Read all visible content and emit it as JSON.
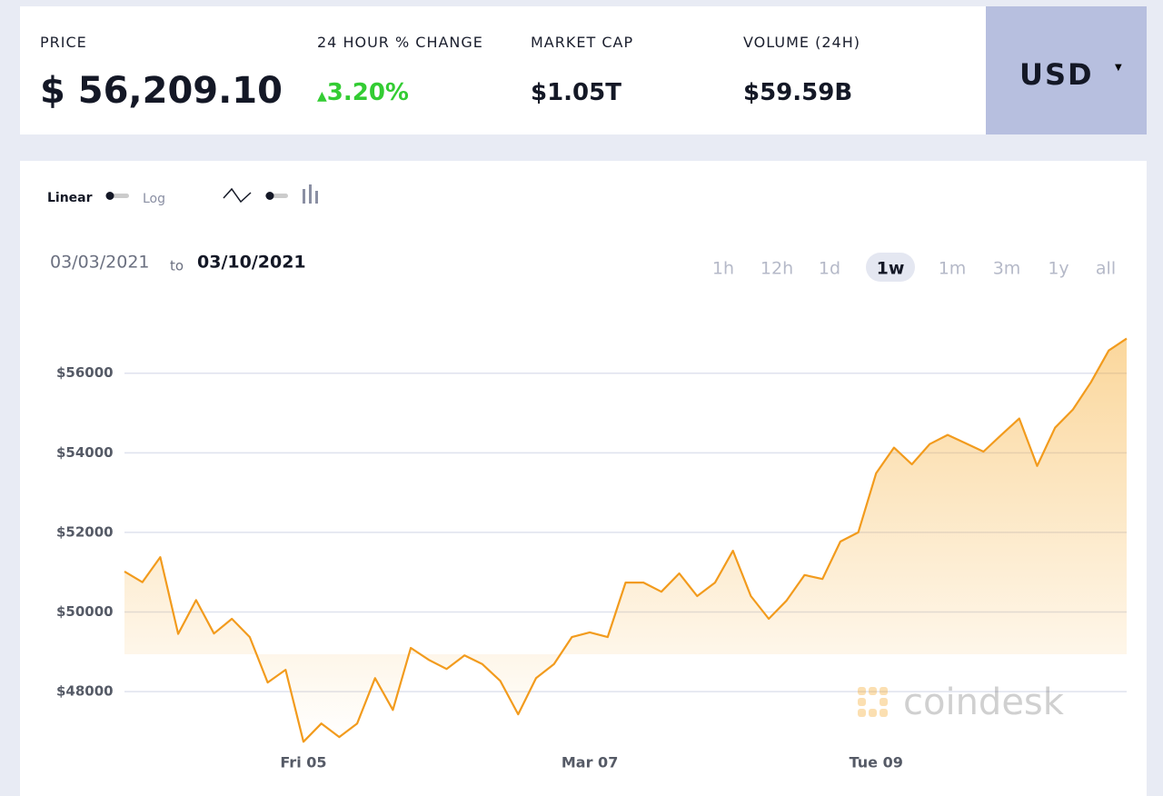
{
  "header": {
    "price_label": "PRICE",
    "price": "$ 56,209.10",
    "change_label": "24 HOUR % CHANGE",
    "change": "3.20%",
    "market_cap_label": "MARKET CAP",
    "market_cap": "$1.05T",
    "volume_label": "VOLUME (24H)",
    "volume": "$59.59B",
    "currency": "USD"
  },
  "controls": {
    "linear": "Linear",
    "log": "Log"
  },
  "range": {
    "from": "03/03/2021",
    "to_word": "to",
    "to": "03/10/2021",
    "periods": [
      "1h",
      "12h",
      "1d",
      "1w",
      "1m",
      "3m",
      "1y",
      "all"
    ],
    "active": "1w"
  },
  "watermark": "coindesk",
  "chart_data": {
    "type": "line",
    "categories": [
      null,
      null,
      null,
      null,
      null,
      null,
      null,
      null,
      null,
      null,
      "Fri 05",
      null,
      null,
      null,
      null,
      null,
      null,
      null,
      null,
      null,
      null,
      null,
      null,
      null,
      null,
      null,
      "Mar 07",
      null,
      null,
      null,
      null,
      null,
      null,
      null,
      null,
      null,
      null,
      null,
      null,
      null,
      null,
      null,
      "Tue 09",
      null,
      null,
      null,
      null,
      null,
      null,
      null,
      null,
      null,
      null,
      null,
      null,
      null,
      null
    ],
    "series": [
      {
        "color": "#f29b1d",
        "values": [
          51020,
          50750,
          51380,
          49450,
          50300,
          49460,
          49830,
          49370,
          48230,
          48550,
          46740,
          47200,
          46860,
          47200,
          48340,
          47540,
          49100,
          48800,
          48570,
          48910,
          48690,
          48270,
          47430,
          48340,
          48690,
          49370,
          49490,
          49370,
          50740,
          50740,
          50510,
          50970,
          50400,
          50740,
          51540,
          50400,
          49830,
          50290,
          50930,
          50830,
          51770,
          52000,
          53490,
          54130,
          53710,
          54220,
          54450,
          54240,
          54030,
          54450,
          54860,
          53670,
          54630,
          55090,
          55770,
          56570,
          56870
        ]
      }
    ],
    "ylim": [
      46200,
      57500
    ],
    "yticks": [
      {
        "value": 48000,
        "label": "$48000"
      },
      {
        "value": 50000,
        "label": "$50000"
      },
      {
        "value": 52000,
        "label": "$52000"
      },
      {
        "value": 54000,
        "label": "$54000"
      },
      {
        "value": 56000,
        "label": "$56000"
      }
    ],
    "grid": true
  }
}
